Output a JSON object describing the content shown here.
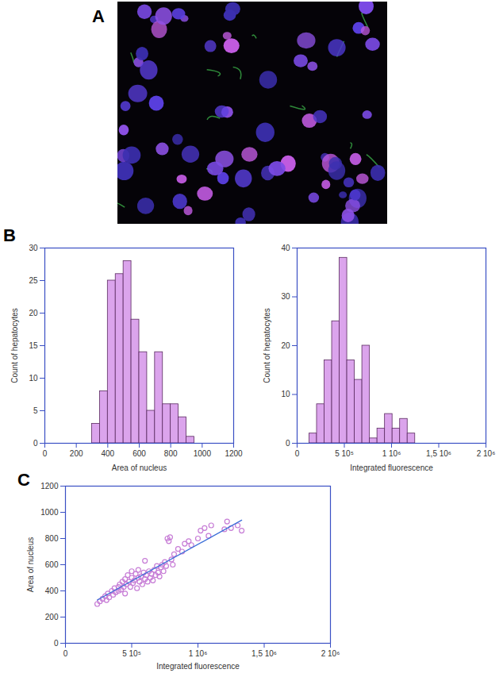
{
  "image_panel": {
    "label": "A"
  },
  "chart_data": [
    {
      "type": "histogram",
      "panel": "B",
      "xlabel": "Area of nucleus",
      "ylabel": "Count of hepatocytes",
      "bins": [
        300,
        350,
        400,
        450,
        500,
        550,
        600,
        650,
        700,
        750,
        800,
        850,
        900,
        950
      ],
      "values": [
        3,
        8,
        25,
        26,
        28,
        19,
        14,
        5,
        14,
        6,
        6,
        4,
        1
      ],
      "color": "#dba4ec",
      "xlim": [
        0,
        1200
      ],
      "xticks": [
        0,
        200,
        400,
        600,
        800,
        1000,
        1200
      ],
      "ylim": [
        0,
        30
      ],
      "yticks": [
        0,
        5,
        10,
        15,
        20,
        25,
        30
      ]
    },
    {
      "type": "histogram",
      "panel": "B",
      "xlabel": "Integrated fluorescence",
      "ylabel": "Count of hepatocytes",
      "bins": [
        130000,
        210000,
        290000,
        370000,
        450000,
        530000,
        610000,
        690000,
        770000,
        850000,
        930000,
        1010000,
        1090000,
        1170000,
        1250000
      ],
      "values": [
        2,
        8,
        17,
        25,
        38,
        17,
        13,
        20,
        1,
        3,
        6,
        3,
        5,
        2
      ],
      "color": "#dba4ec",
      "xlim": [
        0,
        2000000
      ],
      "xticks": [
        0,
        {
          "value": 500000,
          "label": "5 10⁵"
        },
        {
          "value": 1000000,
          "label": "1 10⁶"
        },
        {
          "value": 1500000,
          "label": "1,5 10⁶"
        },
        {
          "value": 2000000,
          "label": "2 10⁶"
        }
      ],
      "ylim": [
        0,
        40
      ],
      "yticks": [
        0,
        10,
        20,
        30,
        40
      ]
    },
    {
      "type": "scatter",
      "panel": "C",
      "xlabel": "Integrated fluorescence",
      "ylabel": "Area of nucleus",
      "marker": "circle",
      "color": "#c77dd6",
      "x": [
        240000,
        260000,
        280000,
        300000,
        310000,
        320000,
        330000,
        350000,
        360000,
        370000,
        380000,
        400000,
        400000,
        410000,
        420000,
        430000,
        440000,
        450000,
        450000,
        460000,
        470000,
        480000,
        490000,
        500000,
        500000,
        510000,
        520000,
        530000,
        540000,
        550000,
        550000,
        560000,
        570000,
        580000,
        590000,
        600000,
        600000,
        610000,
        620000,
        630000,
        640000,
        650000,
        660000,
        670000,
        680000,
        690000,
        700000,
        710000,
        720000,
        730000,
        740000,
        750000,
        760000,
        770000,
        780000,
        790000,
        800000,
        810000,
        820000,
        850000,
        880000,
        900000,
        930000,
        950000,
        1000000,
        1020000,
        1050000,
        1080000,
        1100000,
        1200000,
        1220000,
        1250000,
        1300000,
        1330000
      ],
      "y": [
        300,
        320,
        340,
        360,
        330,
        380,
        350,
        400,
        370,
        420,
        390,
        430,
        400,
        450,
        410,
        470,
        430,
        490,
        380,
        450,
        520,
        470,
        430,
        500,
        550,
        460,
        480,
        530,
        420,
        500,
        560,
        470,
        510,
        450,
        540,
        490,
        630,
        520,
        470,
        550,
        500,
        530,
        480,
        560,
        520,
        590,
        540,
        510,
        580,
        600,
        550,
        620,
        590,
        800,
        780,
        810,
        640,
        600,
        680,
        720,
        700,
        760,
        780,
        750,
        800,
        860,
        880,
        820,
        900,
        870,
        930,
        880,
        900,
        860
      ],
      "fit_line": {
        "x": [
          240000,
          1330000
        ],
        "y": [
          330,
          940
        ],
        "color": "#3b6fd8"
      },
      "xlim": [
        0,
        2000000
      ],
      "xticks": [
        0,
        {
          "value": 500000,
          "label": "5 10⁵"
        },
        {
          "value": 1000000,
          "label": "1 10⁶"
        },
        {
          "value": 1500000,
          "label": "1,5 10⁶"
        },
        {
          "value": 2000000,
          "label": "2 10⁶"
        }
      ],
      "ylim": [
        0,
        1200
      ],
      "yticks": [
        0,
        200,
        400,
        600,
        800,
        1000,
        1200
      ]
    }
  ]
}
